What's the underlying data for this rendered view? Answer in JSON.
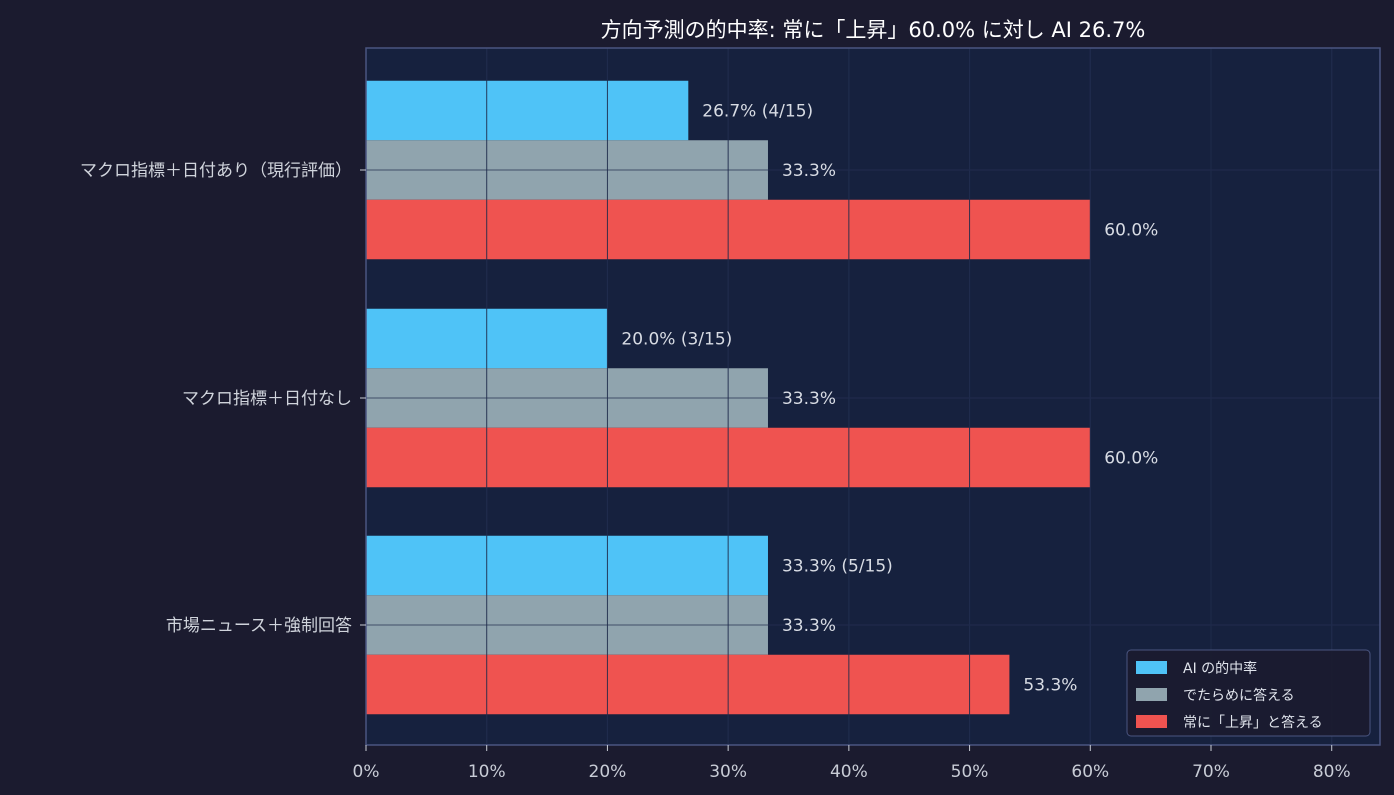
{
  "chart_data": {
    "type": "bar",
    "orientation": "horizontal",
    "title": "方向予測の的中率: 常に「上昇」60.0% に対し AI 26.7%",
    "categories": [
      "マクロ指標＋日付あり（現行評価）",
      "マクロ指標＋日付なし",
      "市場ニュース＋強制回答"
    ],
    "series": [
      {
        "name": "AI の的中率",
        "color": "#4fc3f7",
        "values": [
          26.7,
          20.0,
          33.3
        ],
        "labels": [
          "26.7% (4/15)",
          "20.0% (3/15)",
          "33.3% (5/15)"
        ]
      },
      {
        "name": "でたらめに答える",
        "color": "#90a4ae",
        "values": [
          33.3,
          33.3,
          33.3
        ],
        "labels": [
          "33.3%",
          "33.3%",
          "33.3%"
        ]
      },
      {
        "name": "常に「上昇」と答える",
        "color": "#ef5350",
        "values": [
          60.0,
          60.0,
          53.3
        ],
        "labels": [
          "60.0%",
          "60.0%",
          "53.3%"
        ]
      }
    ],
    "xlim": [
      0,
      84
    ],
    "xticks": [
      0,
      10,
      20,
      30,
      40,
      50,
      60,
      70,
      80
    ],
    "xtick_labels": [
      "0%",
      "10%",
      "20%",
      "30%",
      "40%",
      "50%",
      "60%",
      "70%",
      "80%"
    ],
    "xlabel": "",
    "ylabel": "",
    "grid": true,
    "legend_position": "bottom-right",
    "colors": {
      "background": "#1b1b2f",
      "plot_background": "#16213e",
      "axes_border": "#4a5580",
      "grid": "#2a3558"
    }
  }
}
